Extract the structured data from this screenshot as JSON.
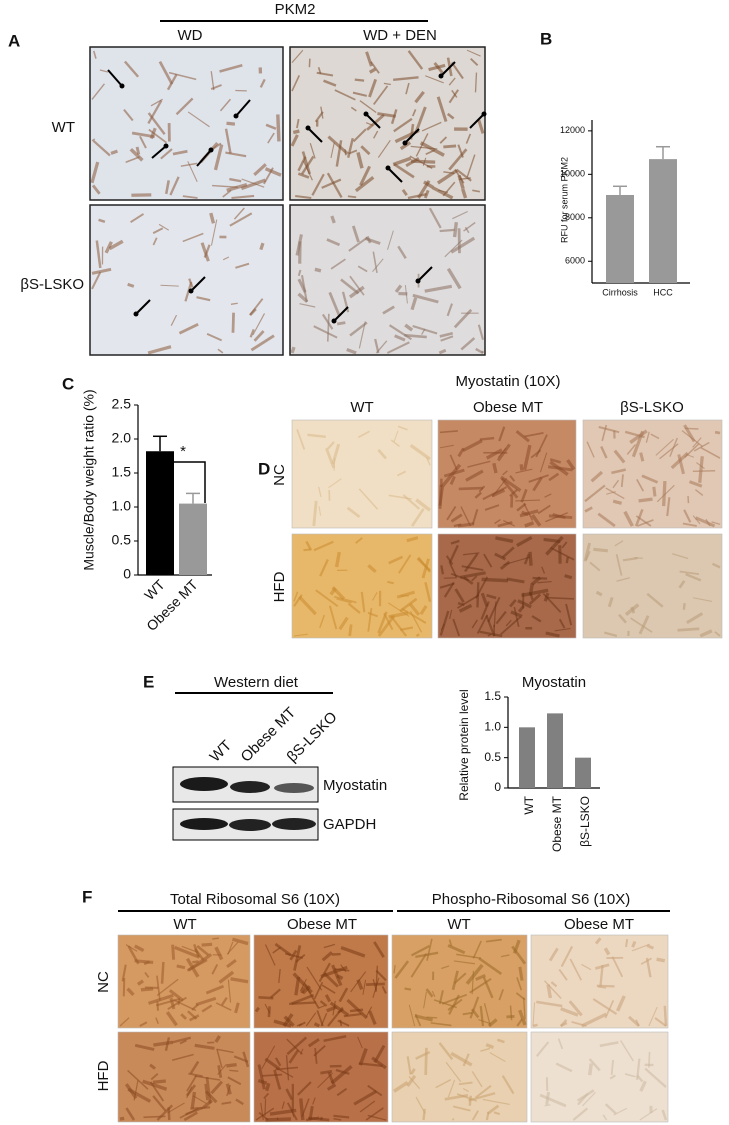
{
  "panels": {
    "A": {
      "label": "A",
      "title": "PKM2",
      "columns": [
        "WD",
        "WD + DEN"
      ],
      "rows": [
        "WT",
        "βS-LSKO"
      ]
    },
    "B": {
      "label": "B"
    },
    "C": {
      "label": "C",
      "significance": "*"
    },
    "D": {
      "label": "D",
      "title": "Myostatin (10X)",
      "columns": [
        "WT",
        "Obese MT",
        "βS-LSKO"
      ],
      "rows": [
        "NC",
        "HFD"
      ]
    },
    "E": {
      "label": "E",
      "title": "Western diet",
      "lanes": [
        "WT",
        "Obese MT",
        "βS-LSKO"
      ],
      "bands": [
        "Myostatin",
        "GAPDH"
      ]
    },
    "F": {
      "label": "F",
      "groups": [
        {
          "title": "Total Ribosomal S6 (10X)",
          "columns": [
            "WT",
            "Obese MT"
          ]
        },
        {
          "title": "Phospho-Ribosomal S6 (10X)",
          "columns": [
            "WT",
            "Obese MT"
          ]
        }
      ],
      "rows": [
        "NC",
        "HFD"
      ]
    }
  },
  "chart_data": [
    {
      "type": "bar",
      "ylabel": "RFU for serum PKM2",
      "categories": [
        "Cirrhosis",
        "HCC"
      ],
      "values": [
        9050,
        10700
      ],
      "errors": [
        400,
        570
      ],
      "colors": [
        "#999999",
        "#999999"
      ],
      "ylim": [
        5000,
        12500
      ],
      "yticks": [
        6000,
        8000,
        10000,
        12000
      ]
    },
    {
      "type": "bar",
      "ylabel": "Muscle/Body weight ratio (%)",
      "categories": [
        "WT",
        "Obese MT"
      ],
      "values": [
        1.82,
        1.05
      ],
      "errors": [
        0.22,
        0.15
      ],
      "colors": [
        "#000000",
        "#999999"
      ],
      "ylim": [
        0,
        2.5
      ],
      "yticks": [
        0,
        0.5,
        {
          "value": 1.0,
          "label": "1.0"
        },
        1.5,
        {
          "value": 2.0,
          "label": "2.0"
        },
        2.5
      ]
    },
    {
      "type": "bar",
      "title": "Myostatin",
      "ylabel": "Relative protein level",
      "categories": [
        "WT",
        "Obese MT",
        "βS-LSKO"
      ],
      "values": [
        1.0,
        1.23,
        0.5
      ],
      "colors": [
        "#808080",
        "#808080",
        "#808080"
      ],
      "ylim": [
        0,
        1.5
      ],
      "yticks": [
        0,
        0.5,
        {
          "value": 1.0,
          "label": "1.0"
        },
        1.5
      ]
    }
  ]
}
